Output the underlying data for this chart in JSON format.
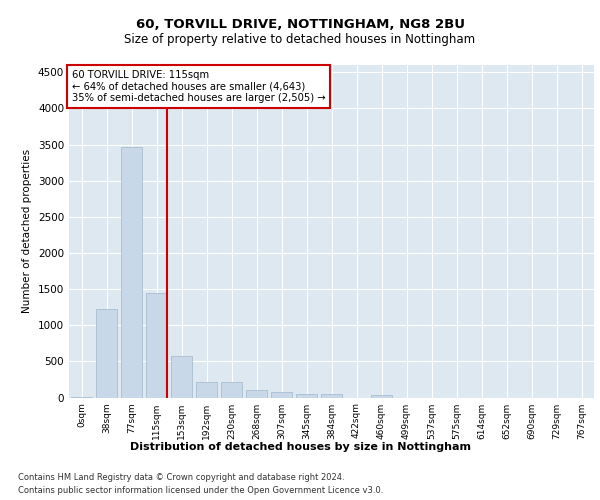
{
  "title1": "60, TORVILL DRIVE, NOTTINGHAM, NG8 2BU",
  "title2": "Size of property relative to detached houses in Nottingham",
  "xlabel": "Distribution of detached houses by size in Nottingham",
  "ylabel": "Number of detached properties",
  "bar_labels": [
    "0sqm",
    "38sqm",
    "77sqm",
    "115sqm",
    "153sqm",
    "192sqm",
    "230sqm",
    "268sqm",
    "307sqm",
    "345sqm",
    "384sqm",
    "422sqm",
    "460sqm",
    "499sqm",
    "537sqm",
    "575sqm",
    "614sqm",
    "652sqm",
    "690sqm",
    "729sqm",
    "767sqm"
  ],
  "bar_values": [
    10,
    1220,
    3470,
    1450,
    570,
    215,
    215,
    110,
    75,
    55,
    45,
    0,
    30,
    0,
    0,
    0,
    0,
    0,
    0,
    0,
    0
  ],
  "bar_color": "#c8d8e8",
  "bar_edge_color": "#a0b8cc",
  "annotation_text1": "60 TORVILL DRIVE: 115sqm",
  "annotation_text2": "← 64% of detached houses are smaller (4,643)",
  "annotation_text3": "35% of semi-detached houses are larger (2,505) →",
  "annotation_box_color": "#ffffff",
  "annotation_box_edge": "#cc0000",
  "vline_color": "#cc0000",
  "ylim": [
    0,
    4600
  ],
  "yticks": [
    0,
    500,
    1000,
    1500,
    2000,
    2500,
    3000,
    3500,
    4000,
    4500
  ],
  "footer1": "Contains HM Land Registry data © Crown copyright and database right 2024.",
  "footer2": "Contains public sector information licensed under the Open Government Licence v3.0.",
  "plot_bg_color": "#dde8f0"
}
